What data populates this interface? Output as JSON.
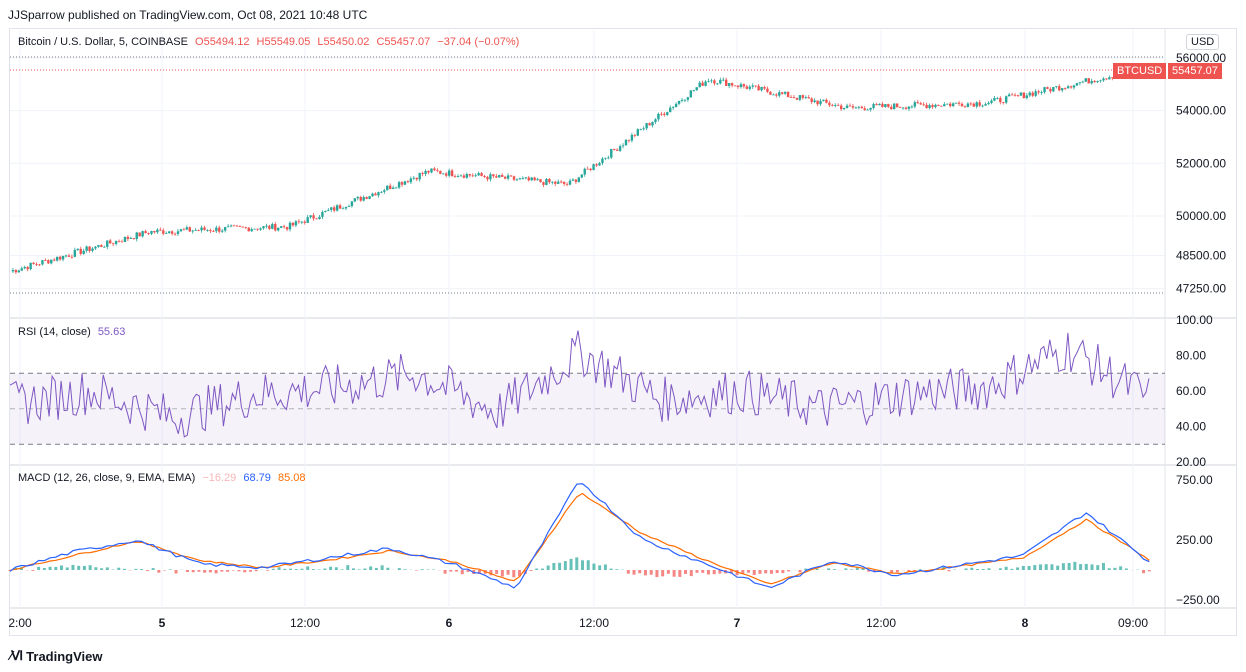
{
  "header": "JJSparrow published on TradingView.com, Oct 08, 2021 10:48 UTC",
  "footer": {
    "brand": "TradingView",
    "logo_icon": "tradingview-logo-icon"
  },
  "currency_label": "USD",
  "price_legend": {
    "symbol": "Bitcoin / U.S. Dollar, 5, COINBASE",
    "open": "O55494.12",
    "high": "H55549.05",
    "low": "L55450.02",
    "close": "C55457.07",
    "change": "−37.04 (−0.07%)"
  },
  "price_tag": {
    "symbol": "BTCUSD",
    "value": "55457.07"
  },
  "rsi_legend": {
    "label": "RSI (14, close)",
    "value": "55.63"
  },
  "macd_legend": {
    "label": "MACD (12, 26, close, 9, EMA, EMA)",
    "hist": "−16.29",
    "macd": "68.79",
    "signal": "85.08"
  },
  "colors": {
    "up": "#26a69a",
    "down": "#ef5350",
    "rsi": "#7e57c2",
    "macd": "#2962ff",
    "signal": "#ff6d00"
  },
  "chart_data": [
    {
      "type": "candlestick",
      "series": [
        {
          "name": "Bitcoin / U.S. Dollar, 5, COINBASE",
          "x": [
            "2:00",
            "5",
            "12:00",
            "6",
            "12:00",
            "7",
            "12:00",
            "8",
            "09:00"
          ],
          "values": [
            47900,
            49400,
            49600,
            51700,
            51200,
            55200,
            54100,
            54300,
            55457.07
          ]
        }
      ],
      "y_ticks": [
        "56000.00",
        "54000.00",
        "52000.00",
        "50000.00",
        "48500.00",
        "47250.00"
      ],
      "ylim": [
        47000,
        56300
      ]
    },
    {
      "type": "line",
      "series": [
        {
          "name": "RSI (14, close)",
          "values": [
            52,
            60,
            45,
            58,
            62,
            70,
            48,
            82,
            55,
            60,
            50,
            58,
            62,
            84,
            55.63
          ]
        }
      ],
      "y_ticks": [
        "100.00",
        "80.00",
        "60.00",
        "40.00",
        "20.00"
      ],
      "bands": [
        30,
        70
      ],
      "ylim": [
        20,
        100
      ]
    },
    {
      "type": "line",
      "series": [
        {
          "name": "MACD",
          "values": [
            0,
            150,
            250,
            50,
            20,
            100,
            180,
            50,
            -150,
            750,
            250,
            50,
            -150,
            80,
            -40,
            40,
            120,
            480,
            68.79
          ]
        },
        {
          "name": "Signal",
          "values": [
            0,
            120,
            240,
            80,
            20,
            80,
            160,
            70,
            -100,
            650,
            300,
            80,
            -120,
            60,
            -30,
            30,
            100,
            420,
            85.08
          ]
        }
      ],
      "y_ticks": [
        "750.00",
        "250.00",
        "−250.00"
      ],
      "ylim": [
        -300,
        850
      ]
    }
  ],
  "x_ticks": [
    "2:00",
    "5",
    "12:00",
    "6",
    "12:00",
    "7",
    "12:00",
    "8",
    "09:00"
  ]
}
